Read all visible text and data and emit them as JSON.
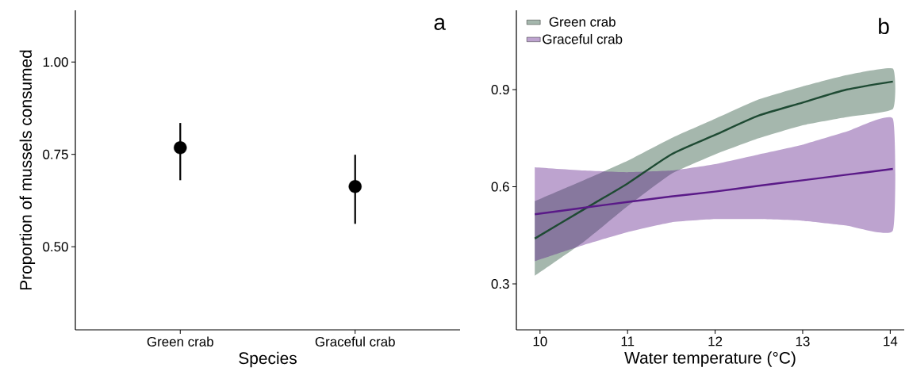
{
  "chart_data": [
    {
      "type": "scatter",
      "title": "a",
      "xlabel": "Species",
      "ylabel": "Proportion of mussels consumed",
      "categories": [
        "Green crab",
        "Graceful crab"
      ],
      "values": [
        0.768,
        0.663
      ],
      "errors": [
        [
          0.68,
          0.835
        ],
        [
          0.562,
          0.749
        ]
      ],
      "color": "#000000",
      "marker": "circle",
      "ylim": [
        0.275,
        1.14
      ],
      "yticks": [
        {
          "value": 0.5,
          "label": "0.50"
        },
        {
          "value": 0.75,
          "label": "0.75"
        },
        {
          "value": 1.0,
          "label": "1.00"
        }
      ]
    },
    {
      "type": "line",
      "title": "b",
      "xlabel": "Water temperature (°C)",
      "legend": "top left",
      "xlim": [
        9.73,
        14.16
      ],
      "ylim": [
        0.158,
        1.145
      ],
      "xticks": [
        10,
        11,
        12,
        13,
        14
      ],
      "yticks": [
        0.3,
        0.6,
        0.9
      ],
      "series": [
        {
          "name": "Green crab",
          "color": "#1e4a33",
          "x": [
            9.94,
            10.5,
            11,
            11.5,
            12,
            12.5,
            13,
            13.5,
            14.03
          ],
          "values": [
            0.44,
            0.53,
            0.61,
            0.7,
            0.76,
            0.82,
            0.86,
            0.9,
            0.925
          ],
          "lower": [
            0.325,
            0.43,
            0.54,
            0.64,
            0.7,
            0.75,
            0.79,
            0.815,
            0.84
          ],
          "upper": [
            0.555,
            0.62,
            0.68,
            0.75,
            0.81,
            0.87,
            0.91,
            0.945,
            0.965
          ]
        },
        {
          "name": "Graceful crab",
          "color": "#5a1a88",
          "x": [
            9.94,
            10.5,
            11,
            11.5,
            12,
            12.5,
            13,
            13.5,
            14.03
          ],
          "values": [
            0.515,
            0.535,
            0.553,
            0.57,
            0.585,
            0.603,
            0.62,
            0.637,
            0.655
          ],
          "lower": [
            0.37,
            0.42,
            0.46,
            0.49,
            0.5,
            0.5,
            0.495,
            0.48,
            0.465
          ],
          "upper": [
            0.66,
            0.65,
            0.645,
            0.65,
            0.67,
            0.7,
            0.73,
            0.77,
            0.81
          ]
        }
      ]
    }
  ]
}
